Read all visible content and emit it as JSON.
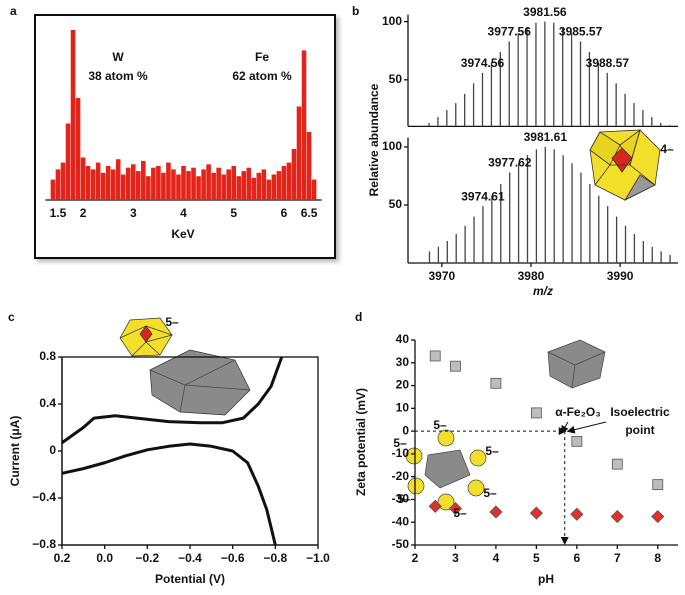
{
  "chart_data": [
    {
      "type": "bar",
      "panel_label": "a",
      "xlabel": "KeV",
      "annotations": [
        "W",
        "38 atom %",
        "Fe",
        "62 atom %"
      ],
      "x": [
        1.4,
        1.5,
        1.6,
        1.7,
        1.8,
        1.9,
        2.0,
        2.1,
        2.2,
        2.3,
        2.4,
        2.5,
        2.6,
        2.7,
        2.8,
        2.9,
        3.0,
        3.1,
        3.2,
        3.3,
        3.4,
        3.5,
        3.6,
        3.7,
        3.8,
        3.9,
        4.0,
        4.1,
        4.2,
        4.3,
        4.4,
        4.5,
        4.6,
        4.7,
        4.8,
        4.9,
        5.0,
        5.1,
        5.2,
        5.3,
        5.4,
        5.5,
        5.6,
        5.7,
        5.8,
        5.9,
        6.0,
        6.1,
        6.2,
        6.3,
        6.4,
        6.5,
        6.6
      ],
      "values": [
        12,
        18,
        22,
        45,
        100,
        60,
        25,
        20,
        18,
        22,
        16,
        20,
        18,
        24,
        15,
        19,
        21,
        17,
        23,
        14,
        19,
        20,
        16,
        22,
        18,
        15,
        20,
        17,
        19,
        14,
        18,
        21,
        16,
        19,
        15,
        18,
        20,
        14,
        17,
        19,
        13,
        16,
        18,
        12,
        15,
        17,
        20,
        22,
        30,
        55,
        88,
        40,
        12
      ],
      "color": "#e3241b",
      "xlim": [
        1.25,
        6.75
      ],
      "ylim": [
        0,
        100
      ],
      "xticks": [
        1.5,
        2,
        3,
        4,
        5,
        6,
        6.5
      ]
    },
    {
      "type": "stem",
      "panel_label": "b",
      "ylabel": "Relative abundance",
      "peak_labels": [
        3974.56,
        3977.56,
        3981.56,
        3985.57,
        3988.57
      ],
      "x": [
        3968.56,
        3969.56,
        3970.56,
        3971.56,
        3972.56,
        3973.56,
        3974.56,
        3975.56,
        3976.56,
        3977.56,
        3978.56,
        3979.56,
        3980.56,
        3981.56,
        3982.56,
        3983.56,
        3984.56,
        3985.56,
        3986.56,
        3987.56,
        3988.56,
        3989.56,
        3990.56,
        3991.56,
        3992.56,
        3993.56,
        3994.56,
        3995.56
      ],
      "values": [
        13,
        18,
        24,
        30,
        38,
        47,
        56,
        65,
        74,
        83,
        90,
        95,
        99,
        100,
        99,
        95,
        90,
        83,
        74,
        65,
        56,
        47,
        38,
        30,
        24,
        18,
        13,
        11
      ],
      "color": "#444444",
      "xlim": [
        3966.2,
        3996.5
      ],
      "ylim": [
        10,
        106
      ],
      "yticks": [
        50,
        100
      ]
    },
    {
      "type": "stem",
      "xlabel": "m/z",
      "annotations": [
        "4–"
      ],
      "peak_labels": [
        3974.61,
        3977.62,
        3981.61
      ],
      "x": [
        3968.61,
        3969.61,
        3970.61,
        3971.61,
        3972.61,
        3973.61,
        3974.61,
        3975.61,
        3976.61,
        3977.61,
        3978.61,
        3979.61,
        3980.61,
        3981.61,
        3982.61,
        3983.61,
        3984.61,
        3985.61,
        3986.61,
        3987.61,
        3988.61,
        3989.61,
        3990.61,
        3991.61,
        3992.61,
        3993.61,
        3994.61,
        3995.61
      ],
      "values": [
        10,
        14,
        19,
        25,
        32,
        40,
        49,
        58,
        68,
        78,
        86,
        93,
        98,
        100,
        98,
        93,
        86,
        78,
        68,
        58,
        49,
        40,
        32,
        25,
        19,
        14,
        10,
        7
      ],
      "color": "#444444",
      "xlim": [
        3966.2,
        3996.5
      ],
      "ylim": [
        0,
        108
      ],
      "xticks": [
        3970,
        3980,
        3990
      ],
      "yticks": [
        50,
        100
      ]
    },
    {
      "type": "line",
      "panel_label": "c",
      "xlabel": "Potential (V)",
      "ylabel": "Current (μA)",
      "annotations": [
        "5–"
      ],
      "series": [
        {
          "color": "#111111",
          "x": [
            0.2,
            0.1,
            0.05,
            -0.05,
            -0.15,
            -0.3,
            -0.45,
            -0.55,
            -0.65,
            -0.72,
            -0.78,
            -0.83
          ],
          "values": [
            0.07,
            0.2,
            0.28,
            0.3,
            0.28,
            0.25,
            0.24,
            0.24,
            0.28,
            0.4,
            0.55,
            0.8
          ]
        },
        {
          "color": "#111111",
          "x": [
            0.2,
            0.1,
            0,
            -0.1,
            -0.2,
            -0.3,
            -0.4,
            -0.5,
            -0.6,
            -0.67,
            -0.72,
            -0.76,
            -0.8
          ],
          "values": [
            -0.19,
            -0.15,
            -0.1,
            -0.04,
            0.01,
            0.04,
            0.06,
            0.04,
            0,
            -0.1,
            -0.3,
            -0.5,
            -0.8
          ]
        }
      ],
      "xlim": [
        0.2,
        -1.0
      ],
      "ylim": [
        -0.8,
        0.8
      ],
      "xticks": [
        0.2,
        {
          "value": 0,
          "label": "0.0"
        },
        {
          "value": -0.2,
          "label": "−0.2"
        },
        {
          "value": -0.4,
          "label": "−0.4"
        },
        {
          "value": -0.6,
          "label": "−0.6"
        },
        {
          "value": -0.8,
          "label": "−0.8"
        },
        {
          "value": -1.0,
          "label": "−1.0"
        }
      ],
      "yticks": [
        {
          "value": -0.8,
          "label": "−0.8"
        },
        {
          "value": -0.4,
          "label": "−0.4"
        },
        0,
        0.4,
        0.8
      ]
    },
    {
      "type": "scatter",
      "panel_label": "d",
      "xlabel": "pH",
      "ylabel": "Zeta potential (mV)",
      "annotations": [
        "α-Fe₂O₃",
        "Isoelectric",
        "point",
        "5–",
        "5–",
        "5–",
        "5–",
        "5–",
        "5–"
      ],
      "isoelectric_point": 5.7,
      "series": [
        {
          "marker": "square",
          "color": "#bdbdbd",
          "x": [
            2.5,
            3,
            4,
            5,
            6,
            7,
            8
          ],
          "values": [
            33,
            28.5,
            21,
            8,
            -4.5,
            -14.5,
            -23.5
          ]
        },
        {
          "marker": "diamond",
          "color": "#e0302a",
          "x": [
            2.5,
            3,
            4,
            5,
            6,
            7,
            8
          ],
          "values": [
            -33,
            -34,
            -35.5,
            -36,
            -36.5,
            -37.5,
            -37.5
          ]
        }
      ],
      "xlim": [
        2,
        8.5
      ],
      "ylim": [
        -50,
        40
      ],
      "xticks": [
        2,
        3,
        4,
        5,
        6,
        7,
        8
      ],
      "yticks": [
        -50,
        -40,
        -30,
        -20,
        -10,
        0,
        10,
        20,
        30,
        40
      ]
    }
  ]
}
